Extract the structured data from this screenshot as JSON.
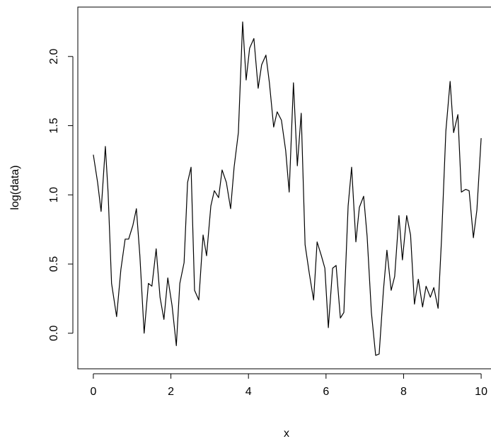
{
  "chart_data": {
    "type": "line",
    "x_label": "x",
    "y_label": "log(data)",
    "x": [
      0,
      0.11,
      0.2,
      0.31,
      0.38,
      0.47,
      0.6,
      0.71,
      0.82,
      0.91,
      1.02,
      1.11,
      1.2,
      1.31,
      1.42,
      1.51,
      1.62,
      1.72,
      1.82,
      1.92,
      2.03,
      2.14,
      2.23,
      2.34,
      2.43,
      2.52,
      2.61,
      2.72,
      2.83,
      2.92,
      3.03,
      3.12,
      3.23,
      3.32,
      3.43,
      3.54,
      3.63,
      3.74,
      3.85,
      3.94,
      4.03,
      4.14,
      4.25,
      4.34,
      4.45,
      4.54,
      4.65,
      4.74,
      4.85,
      4.96,
      5.05,
      5.16,
      5.26,
      5.36,
      5.46,
      5.57,
      5.68,
      5.77,
      5.88,
      5.97,
      6.06,
      6.17,
      6.26,
      6.37,
      6.46,
      6.57,
      6.66,
      6.77,
      6.86,
      6.97,
      7.06,
      7.17,
      7.28,
      7.37,
      7.48,
      7.57,
      7.68,
      7.77,
      7.88,
      7.97,
      8.08,
      8.18,
      8.28,
      8.38,
      8.49,
      8.58,
      8.69,
      8.78,
      8.89,
      8.98,
      9.09,
      9.2,
      9.29,
      9.4,
      9.49,
      9.6,
      9.69,
      9.8,
      9.89,
      10
    ],
    "values": [
      1.29,
      1.09,
      0.88,
      1.35,
      1.02,
      0.36,
      0.12,
      0.46,
      0.68,
      0.68,
      0.78,
      0.9,
      0.56,
      0.0,
      0.36,
      0.34,
      0.61,
      0.26,
      0.1,
      0.4,
      0.2,
      -0.09,
      0.36,
      0.51,
      1.09,
      1.2,
      0.31,
      0.24,
      0.71,
      0.56,
      0.92,
      1.03,
      0.98,
      1.18,
      1.09,
      0.9,
      1.2,
      1.45,
      2.25,
      1.83,
      2.06,
      2.13,
      1.77,
      1.94,
      2.01,
      1.81,
      1.49,
      1.6,
      1.54,
      1.32,
      1.02,
      1.81,
      1.21,
      1.59,
      0.64,
      0.43,
      0.24,
      0.66,
      0.56,
      0.47,
      0.04,
      0.47,
      0.49,
      0.11,
      0.15,
      0.92,
      1.2,
      0.66,
      0.91,
      0.99,
      0.7,
      0.15,
      -0.16,
      -0.15,
      0.31,
      0.6,
      0.31,
      0.41,
      0.85,
      0.53,
      0.85,
      0.71,
      0.21,
      0.39,
      0.19,
      0.34,
      0.26,
      0.33,
      0.18,
      0.69,
      1.46,
      1.82,
      1.45,
      1.58,
      1.02,
      1.04,
      1.03,
      0.69,
      0.89,
      1.41
    ],
    "color": "#000000",
    "xlim": [
      -0.4,
      10.4
    ],
    "xticks": [
      0,
      2,
      4,
      6,
      8,
      10
    ],
    "ylim": [
      -0.257,
      2.357
    ],
    "yticks": [
      {
        "value": 0,
        "label": "0.0"
      },
      {
        "value": 0.5,
        "label": "0.5"
      },
      {
        "value": 1,
        "label": "1.0"
      },
      {
        "value": 1.5,
        "label": "1.5"
      },
      {
        "value": 2,
        "label": "2.0"
      }
    ]
  }
}
